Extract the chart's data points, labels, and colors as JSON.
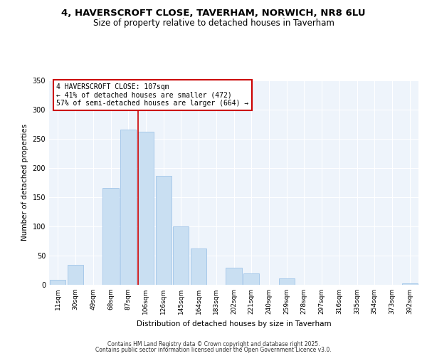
{
  "title1": "4, HAVERSCROFT CLOSE, TAVERHAM, NORWICH, NR8 6LU",
  "title2": "Size of property relative to detached houses in Taverham",
  "xlabel": "Distribution of detached houses by size in Taverham",
  "ylabel": "Number of detached properties",
  "bar_labels": [
    "11sqm",
    "30sqm",
    "49sqm",
    "68sqm",
    "87sqm",
    "106sqm",
    "126sqm",
    "145sqm",
    "164sqm",
    "183sqm",
    "202sqm",
    "221sqm",
    "240sqm",
    "259sqm",
    "278sqm",
    "297sqm",
    "316sqm",
    "335sqm",
    "354sqm",
    "373sqm",
    "392sqm"
  ],
  "bar_values": [
    9,
    34,
    0,
    165,
    265,
    262,
    186,
    100,
    62,
    0,
    29,
    20,
    0,
    11,
    0,
    0,
    0,
    0,
    0,
    0,
    2
  ],
  "bar_color": "#c9dff2",
  "bar_edge_color": "#a0c4e8",
  "annotation_line1": "4 HAVERSCROFT CLOSE: 107sqm",
  "annotation_line2": "← 41% of detached houses are smaller (472)",
  "annotation_line3": "57% of semi-detached houses are larger (664) →",
  "annotation_box_color": "#cc0000",
  "vline_color": "#cc0000",
  "ylim": [
    0,
    350
  ],
  "yticks": [
    0,
    50,
    100,
    150,
    200,
    250,
    300,
    350
  ],
  "footer1": "Contains HM Land Registry data © Crown copyright and database right 2025.",
  "footer2": "Contains public sector information licensed under the Open Government Licence v3.0.",
  "bg_color": "#eef4fb",
  "title_fontsize": 9.5,
  "subtitle_fontsize": 8.5
}
